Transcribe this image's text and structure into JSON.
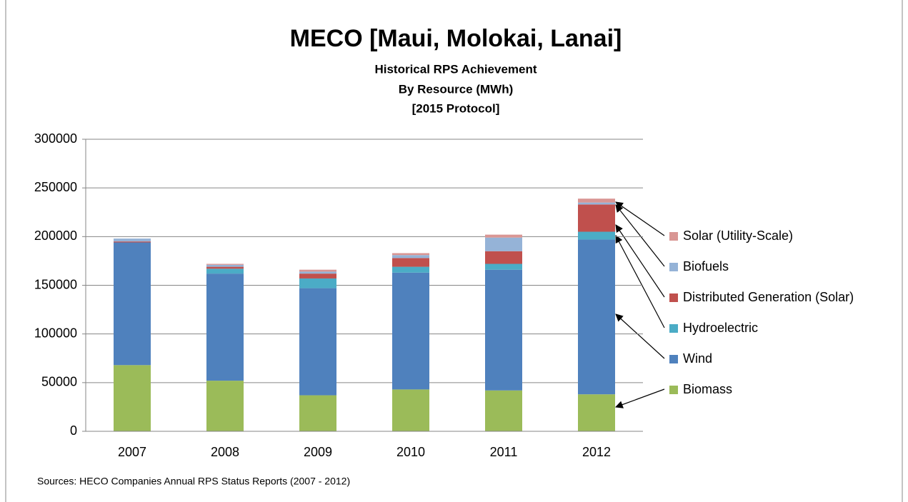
{
  "chart_data": {
    "type": "stacked_bar",
    "title": "MECO [Maui, Molokai, Lanai]",
    "subtitle": [
      "Historical RPS Achievement",
      "By Resource (MWh)",
      "[2015 Protocol]"
    ],
    "source": "Sources: HECO Companies Annual RPS Status Reports (2007 - 2012)",
    "categories": [
      "2007",
      "2008",
      "2009",
      "2010",
      "2011",
      "2012"
    ],
    "series": [
      {
        "name": "Biomass",
        "color": "#9bbb59",
        "values": [
          68000,
          52000,
          37000,
          43000,
          42000,
          38000
        ]
      },
      {
        "name": "Wind",
        "color": "#4f81bd",
        "values": [
          126000,
          110000,
          110000,
          120000,
          124000,
          159000
        ]
      },
      {
        "name": "Hydroelectric",
        "color": "#4bacc6",
        "values": [
          0,
          5000,
          10000,
          6000,
          6000,
          8000
        ]
      },
      {
        "name": "Distributed Generation (Solar)",
        "color": "#c0504d",
        "values": [
          1000,
          2000,
          5000,
          9000,
          13000,
          28000
        ]
      },
      {
        "name": "Biofuels",
        "color": "#95b3d7",
        "values": [
          3000,
          2000,
          2000,
          3000,
          14000,
          2000
        ]
      },
      {
        "name": "Solar (Utility-Scale)",
        "color": "#d99694",
        "values": [
          0,
          1000,
          2000,
          2000,
          3000,
          4000
        ]
      }
    ],
    "ylim": [
      0,
      300000
    ],
    "yticks": [
      0,
      50000,
      100000,
      150000,
      200000,
      250000,
      300000
    ],
    "grid": true
  }
}
